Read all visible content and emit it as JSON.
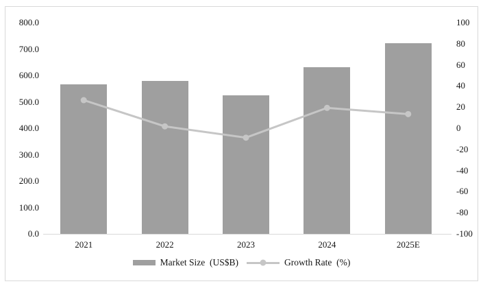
{
  "chart_data": {
    "type": "bar",
    "subtype": "combo-bar-line-dual-axis",
    "categories": [
      "2021",
      "2022",
      "2023",
      "2024",
      "2025E"
    ],
    "series": [
      {
        "name": "Market Size  (US$B)",
        "type": "bar",
        "axis": "left",
        "values": [
          565.0,
          578.0,
          524.0,
          632.0,
          721.0
        ]
      },
      {
        "name": "Growth Rate  (%)",
        "type": "line",
        "axis": "right",
        "values": [
          26.6,
          1.8,
          -8.9,
          19.3,
          13.4
        ]
      }
    ],
    "title": "",
    "xlabel": "",
    "ylabel": "",
    "left_axis": {
      "min": 0,
      "max": 800,
      "tick_step": 100,
      "tick_labels": [
        "800.0",
        "700.0",
        "600.0",
        "500.0",
        "400.0",
        "300.0",
        "200.0",
        "100.0",
        "0.0"
      ]
    },
    "right_axis": {
      "min": -100,
      "max": 100,
      "tick_step": 20,
      "tick_labels": [
        "100",
        "80",
        "60",
        "40",
        "20",
        "0",
        "-20",
        "-40",
        "-60",
        "-80",
        "-100"
      ]
    },
    "grid": false,
    "legend_position": "bottom"
  },
  "legend": {
    "market_size_label": "Market Size  (US$B)",
    "growth_rate_label": "Growth Rate  (%)"
  },
  "colors": {
    "bar": "#9f9f9f",
    "line": "#c6c6c6",
    "marker": "#c6c6c6",
    "axis_line": "#d9d9d9",
    "frame_border": "#d9d9d9",
    "text": "#141414",
    "background": "#ffffff"
  }
}
